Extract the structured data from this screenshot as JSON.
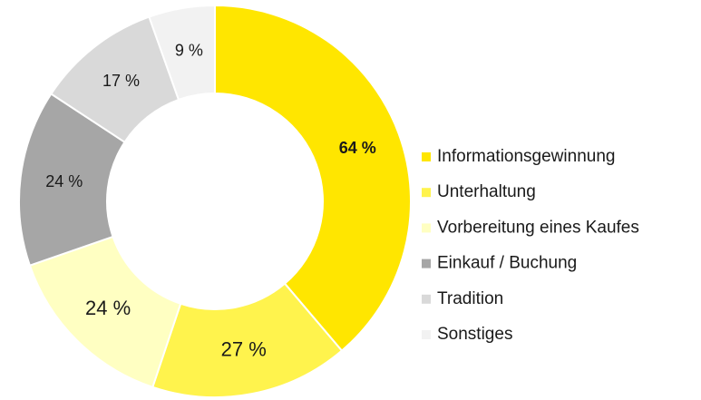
{
  "chart_data": {
    "type": "donut",
    "categories": [
      "Informationsgewinnung",
      "Unterhaltung",
      "Vorbereitung eines Kaufes",
      "Einkauf / Buchung",
      "Tradition",
      "Sonstiges"
    ],
    "values": [
      64,
      27,
      24,
      24,
      17,
      9
    ],
    "value_labels": [
      "64 %",
      "27 %",
      "24 %",
      "24 %",
      "17 %",
      "9 %"
    ],
    "colors": [
      "#FFE600",
      "#FFF34D",
      "#FFFFC2",
      "#A6A6A6",
      "#D9D9D9",
      "#F2F2F2"
    ],
    "legend": "right"
  }
}
